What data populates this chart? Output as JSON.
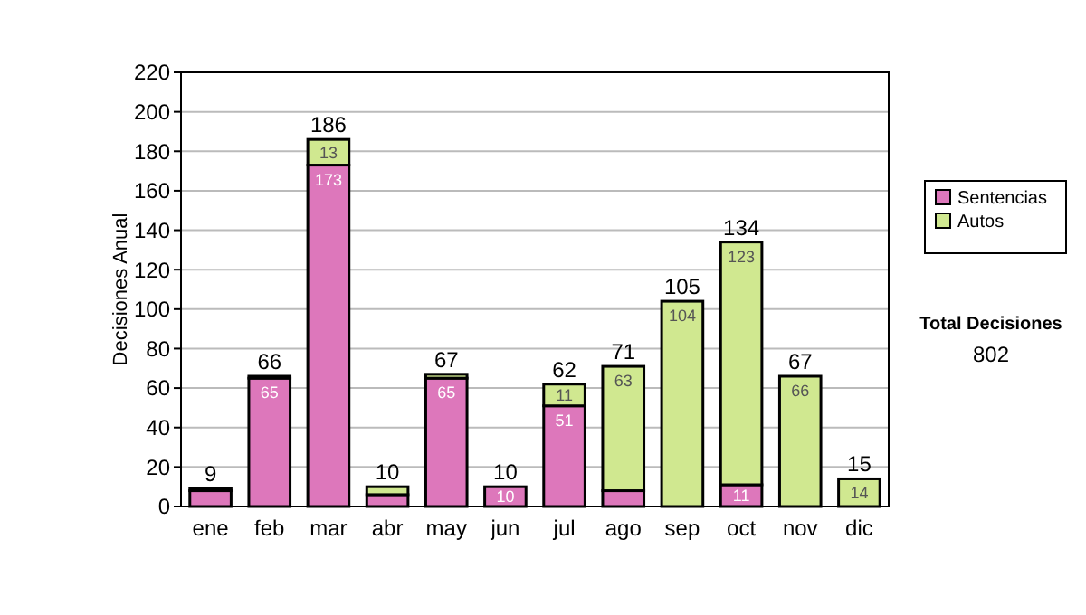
{
  "chart_data": {
    "type": "bar",
    "stacked": true,
    "ylabel": "Decisiones Anual",
    "categories": [
      "ene",
      "feb",
      "mar",
      "abr",
      "may",
      "jun",
      "jul",
      "ago",
      "sep",
      "oct",
      "nov",
      "dic"
    ],
    "series": [
      {
        "name": "Sentencias",
        "color": "#dd77bb",
        "values": [
          8,
          65,
          173,
          6,
          65,
          10,
          51,
          8,
          null,
          11,
          null,
          null
        ],
        "value_labels": [
          null,
          "65",
          "173",
          null,
          "65",
          "10",
          "51",
          null,
          null,
          "11",
          null,
          null
        ]
      },
      {
        "name": "Autos",
        "color": "#d0e890",
        "values": [
          1,
          1,
          13,
          4,
          2,
          0,
          11,
          63,
          104,
          123,
          66,
          14
        ],
        "value_labels": [
          null,
          null,
          "13",
          null,
          null,
          null,
          "11",
          "63",
          "104",
          "123",
          "66",
          "14"
        ]
      }
    ],
    "totals": [
      "9",
      "66",
      "186",
      "10",
      "67",
      "10",
      "62",
      "71",
      "105",
      "134",
      "67",
      "15"
    ],
    "ylim": [
      0,
      220
    ],
    "yticks": [
      0,
      20,
      40,
      60,
      80,
      100,
      120,
      140,
      160,
      180,
      200,
      220
    ],
    "grid": "y",
    "legend": "right",
    "annotations": [
      "Total Decisiones",
      "802"
    ]
  }
}
